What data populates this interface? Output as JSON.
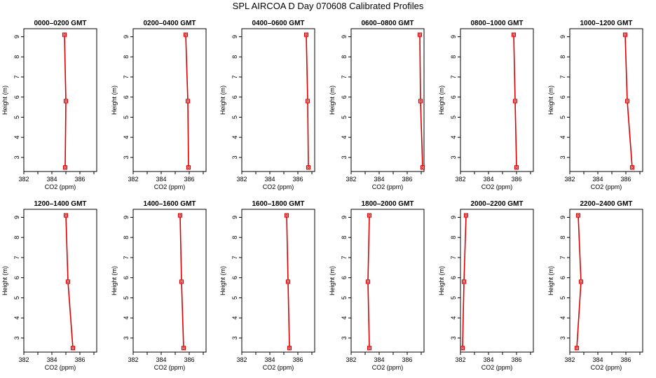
{
  "title": "SPL AIRCOA D  Day 070608  Calibrated Profiles",
  "chart_data": {
    "type": "line",
    "shared_axes": {
      "xlabel": "CO2 (ppm)",
      "ylabel": "Height (m)",
      "xlim": [
        382,
        387.2
      ],
      "ylim": [
        2.3,
        9.4
      ],
      "xticks": [
        382,
        384,
        386
      ],
      "yticks": [
        3,
        4,
        5,
        6,
        7,
        8,
        9
      ],
      "line_color": "#dd0000"
    },
    "panels": [
      {
        "title": "0000–0200 GMT",
        "points": [
          {
            "x": 384.9,
            "y": 9.1
          },
          {
            "x": 385.0,
            "y": 5.8
          },
          {
            "x": 384.95,
            "y": 2.5
          }
        ]
      },
      {
        "title": "0200–0400 GMT",
        "points": [
          {
            "x": 385.75,
            "y": 9.1
          },
          {
            "x": 385.9,
            "y": 5.8
          },
          {
            "x": 385.95,
            "y": 2.5
          }
        ]
      },
      {
        "title": "0400–0600 GMT",
        "points": [
          {
            "x": 386.6,
            "y": 9.1
          },
          {
            "x": 386.7,
            "y": 5.8
          },
          {
            "x": 386.75,
            "y": 2.5
          }
        ]
      },
      {
        "title": "0600–0800 GMT",
        "points": [
          {
            "x": 386.9,
            "y": 9.1
          },
          {
            "x": 386.95,
            "y": 5.8
          },
          {
            "x": 387.1,
            "y": 2.5
          }
        ]
      },
      {
        "title": "0800–1000 GMT",
        "points": [
          {
            "x": 385.8,
            "y": 9.1
          },
          {
            "x": 385.9,
            "y": 5.8
          },
          {
            "x": 386.0,
            "y": 2.5
          }
        ]
      },
      {
        "title": "1000–1200 GMT",
        "points": [
          {
            "x": 385.95,
            "y": 9.1
          },
          {
            "x": 386.1,
            "y": 5.8
          },
          {
            "x": 386.45,
            "y": 2.5
          }
        ]
      },
      {
        "title": "1200–1400 GMT",
        "points": [
          {
            "x": 385.0,
            "y": 9.1
          },
          {
            "x": 385.15,
            "y": 5.8
          },
          {
            "x": 385.5,
            "y": 2.5
          }
        ]
      },
      {
        "title": "1400–1600 GMT",
        "points": [
          {
            "x": 385.35,
            "y": 9.1
          },
          {
            "x": 385.45,
            "y": 5.8
          },
          {
            "x": 385.6,
            "y": 2.5
          }
        ]
      },
      {
        "title": "1600–1800 GMT",
        "points": [
          {
            "x": 385.2,
            "y": 9.1
          },
          {
            "x": 385.3,
            "y": 5.8
          },
          {
            "x": 385.4,
            "y": 2.5
          }
        ]
      },
      {
        "title": "1800–2000 GMT",
        "points": [
          {
            "x": 383.3,
            "y": 9.1
          },
          {
            "x": 383.2,
            "y": 5.8
          },
          {
            "x": 383.3,
            "y": 2.5
          }
        ]
      },
      {
        "title": "2000–2200 GMT",
        "points": [
          {
            "x": 382.4,
            "y": 9.1
          },
          {
            "x": 382.25,
            "y": 5.8
          },
          {
            "x": 382.15,
            "y": 2.5
          }
        ]
      },
      {
        "title": "2200–2400 GMT",
        "points": [
          {
            "x": 382.6,
            "y": 9.1
          },
          {
            "x": 382.8,
            "y": 5.8
          },
          {
            "x": 382.5,
            "y": 2.5
          }
        ]
      }
    ]
  }
}
